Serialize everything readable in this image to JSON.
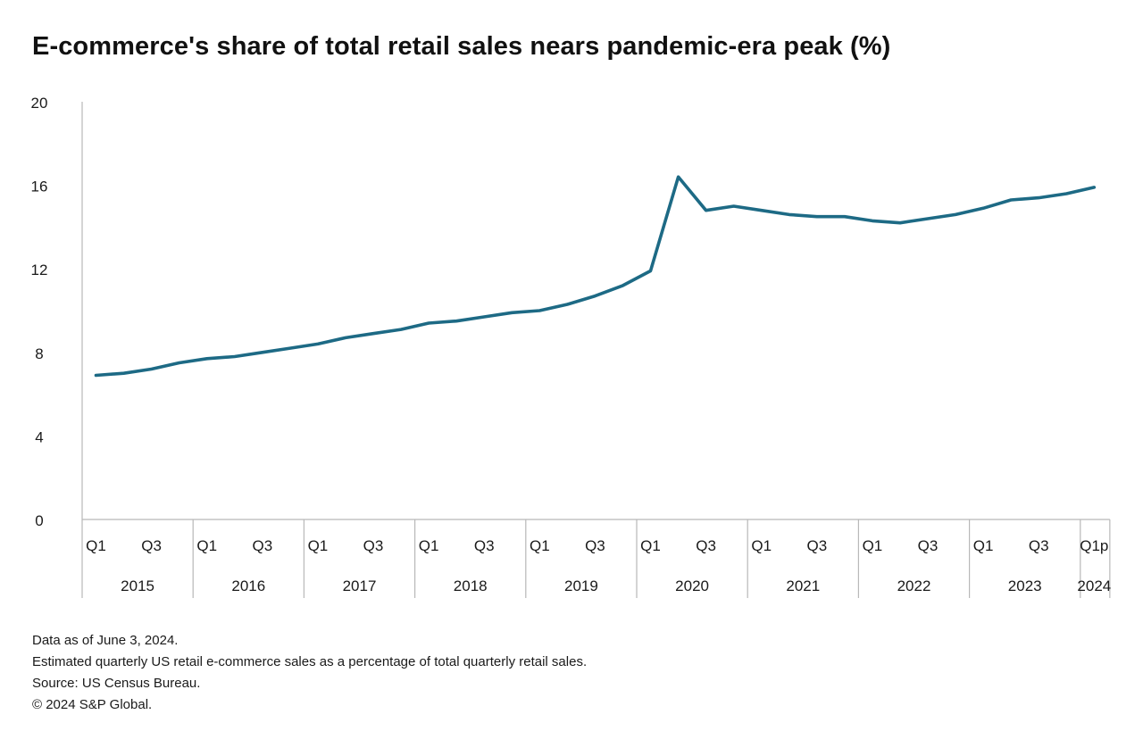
{
  "title": "E-commerce's share of total retail sales nears pandemic-era peak (%)",
  "notes": {
    "line1": "Data as of June 3, 2024.",
    "line2": "Estimated quarterly US retail e-commerce sales as a percentage of total quarterly retail sales.",
    "line3": "Source: US Census Bureau.",
    "line4": "© 2024 S&P Global."
  },
  "colors": {
    "line": "#1d6a85",
    "axis": "#b8b8b8"
  },
  "chart_data": {
    "type": "line",
    "title": "E-commerce's share of total retail sales nears pandemic-era peak (%)",
    "xlabel": "",
    "ylabel": "",
    "ylim": [
      0,
      20
    ],
    "yticks": [
      0,
      4,
      8,
      12,
      16,
      20
    ],
    "grid": false,
    "legend": "none",
    "x": [
      "2015 Q1",
      "2015 Q2",
      "2015 Q3",
      "2015 Q4",
      "2016 Q1",
      "2016 Q2",
      "2016 Q3",
      "2016 Q4",
      "2017 Q1",
      "2017 Q2",
      "2017 Q3",
      "2017 Q4",
      "2018 Q1",
      "2018 Q2",
      "2018 Q3",
      "2018 Q4",
      "2019 Q1",
      "2019 Q2",
      "2019 Q3",
      "2019 Q4",
      "2020 Q1",
      "2020 Q2",
      "2020 Q3",
      "2020 Q4",
      "2021 Q1",
      "2021 Q2",
      "2021 Q3",
      "2021 Q4",
      "2022 Q1",
      "2022 Q2",
      "2022 Q3",
      "2022 Q4",
      "2023 Q1",
      "2023 Q2",
      "2023 Q3",
      "2023 Q4",
      "2024 Q1p"
    ],
    "series": [
      {
        "values": [
          6.9,
          7.0,
          7.2,
          7.5,
          7.7,
          7.8,
          8.0,
          8.2,
          8.4,
          8.7,
          8.9,
          9.1,
          9.4,
          9.5,
          9.7,
          9.9,
          10.0,
          10.3,
          10.7,
          11.2,
          11.9,
          16.4,
          14.8,
          15.0,
          14.8,
          14.6,
          14.5,
          14.5,
          14.3,
          14.2,
          14.4,
          14.6,
          14.9,
          15.3,
          15.4,
          15.6,
          15.9
        ]
      }
    ],
    "quarter_labels": [
      "Q1",
      "",
      "Q3",
      ""
    ],
    "last_quarter_label": "Q1p",
    "year_labels": [
      "2015",
      "2016",
      "2017",
      "2018",
      "2019",
      "2020",
      "2021",
      "2022",
      "2023",
      "2024"
    ]
  }
}
